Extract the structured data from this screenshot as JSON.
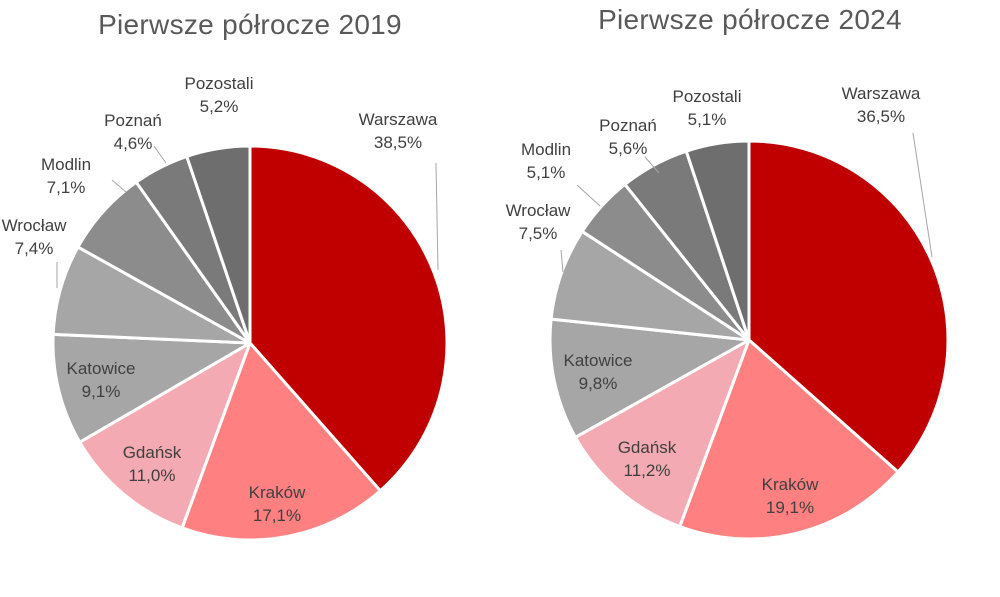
{
  "chart_data": [
    {
      "type": "pie",
      "title": "Pierwsze półrocze 2019",
      "categories": [
        "Warszawa",
        "Kraków",
        "Gdańsk",
        "Katowice",
        "Wrocław",
        "Modlin",
        "Poznań",
        "Pozostali"
      ],
      "values": [
        38.5,
        17.1,
        11.0,
        9.1,
        7.4,
        7.1,
        4.6,
        5.2
      ],
      "value_labels": [
        "38,5%",
        "17,1%",
        "11,0%",
        "9,1%",
        "7,4%",
        "7,1%",
        "4,6%",
        "5,2%"
      ],
      "colors": [
        "#C00000",
        "#FF8080",
        "#F4AAB2",
        "#A6A6A6",
        "#A6A6A6",
        "#8C8C8C",
        "#7A7A7A",
        "#6E6E6E"
      ]
    },
    {
      "type": "pie",
      "title": "Pierwsze półrocze 2024",
      "categories": [
        "Warszawa",
        "Kraków",
        "Gdańsk",
        "Katowice",
        "Wrocław",
        "Modlin",
        "Poznań",
        "Pozostali"
      ],
      "values": [
        36.5,
        19.1,
        11.2,
        9.8,
        7.5,
        5.1,
        5.6,
        5.1
      ],
      "value_labels": [
        "36,5%",
        "19,1%",
        "11,2%",
        "9,8%",
        "7,5%",
        "5,1%",
        "5,6%",
        "5,1%"
      ],
      "colors": [
        "#C00000",
        "#FF8080",
        "#F4AAB2",
        "#A6A6A6",
        "#A6A6A6",
        "#8C8C8C",
        "#7A7A7A",
        "#6E6E6E"
      ]
    }
  ]
}
